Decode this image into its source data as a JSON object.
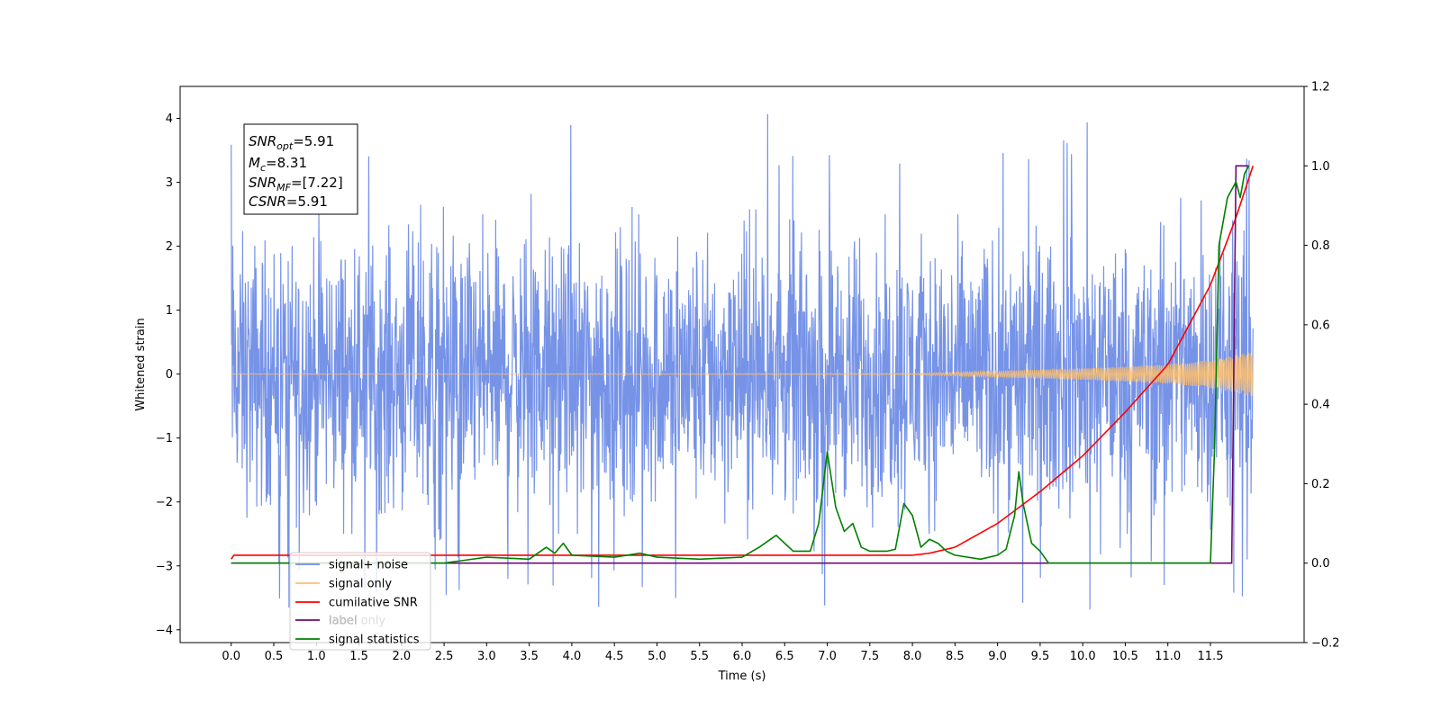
{
  "chart_data": {
    "type": "line",
    "xlabel": "Time (s)",
    "ylabel_left": "Whitened strain",
    "ylabel_right": "",
    "xlim": [
      -0.6,
      12.6
    ],
    "ylim_left": [
      -4.2,
      4.5
    ],
    "ylim_right": [
      -0.2,
      1.2
    ],
    "x_ticks": [
      "0.0",
      "0.5",
      "1.0",
      "1.5",
      "2.0",
      "2.5",
      "3.0",
      "3.5",
      "4.0",
      "4.5",
      "5.0",
      "5.5",
      "6.0",
      "6.5",
      "7.0",
      "7.5",
      "8.0",
      "8.5",
      "9.0",
      "9.5",
      "10.0",
      "10.5",
      "11.0",
      "11.5"
    ],
    "y_ticks_left": [
      "4",
      "3",
      "2",
      "1",
      "0",
      "−1",
      "−2",
      "−3",
      "−4"
    ],
    "y_ticks_right": [
      "1.2",
      "1.0",
      "0.8",
      "0.6",
      "0.4",
      "0.2",
      "0.0",
      "−0.2"
    ],
    "grid": false,
    "legend_position": "bottom-left",
    "annotation": {
      "lines": [
        {
          "base": "SNR",
          "sub": "opt",
          "rest": "=5.91"
        },
        {
          "base": "M",
          "sub": "c",
          "rest": "=8.31"
        },
        {
          "base": "SNR",
          "sub": "MF",
          "rest": "=[7.22]"
        },
        {
          "base": "CSNR",
          "sub": "",
          "rest": "=5.91"
        }
      ]
    },
    "series": [
      {
        "name": "signal+ noise",
        "color": "#6f8de6",
        "axis": "left",
        "x_range": [
          0.0,
          12.0
        ],
        "envelope_upper": 2.5,
        "envelope_lower": -2.5,
        "peak_max": 4.1,
        "peak_min": -3.7
      },
      {
        "name": "signal only",
        "color": "#ffbf6b",
        "axis": "left",
        "x": [
          0.0,
          8.0,
          9.0,
          10.0,
          11.0,
          11.5,
          12.0
        ],
        "amplitude": [
          0.0,
          0.01,
          0.05,
          0.09,
          0.15,
          0.22,
          0.35
        ]
      },
      {
        "name": "cumilative SNR",
        "color": "#ff0000",
        "axis": "right",
        "x": [
          0.0,
          0.02,
          8.0,
          8.2,
          8.5,
          9.0,
          9.5,
          10.0,
          10.5,
          11.0,
          11.5,
          11.8,
          12.0
        ],
        "y": [
          0.01,
          0.02,
          0.02,
          0.025,
          0.04,
          0.1,
          0.18,
          0.27,
          0.38,
          0.5,
          0.7,
          0.87,
          1.0
        ]
      },
      {
        "name": "label",
        "color": "#6a0d6e",
        "axis": "right",
        "x": [
          0.0,
          11.75,
          11.8,
          11.95
        ],
        "y": [
          0.0,
          0.0,
          1.0,
          1.0
        ]
      },
      {
        "name": "label only",
        "color": "#d3d3d3",
        "axis": "right",
        "x": [],
        "y": []
      },
      {
        "name": "signal statistics",
        "color": "#008000",
        "axis": "right",
        "x": [
          0.0,
          2.5,
          3.0,
          3.5,
          3.7,
          3.8,
          3.9,
          4.0,
          4.5,
          4.8,
          5.0,
          5.5,
          6.0,
          6.2,
          6.4,
          6.5,
          6.6,
          6.8,
          6.9,
          7.0,
          7.1,
          7.2,
          7.3,
          7.4,
          7.5,
          7.7,
          7.8,
          7.9,
          8.0,
          8.1,
          8.2,
          8.3,
          8.4,
          8.5,
          8.8,
          9.0,
          9.1,
          9.2,
          9.25,
          9.3,
          9.4,
          9.5,
          9.6,
          9.8,
          10.0,
          11.0,
          11.4,
          11.5,
          11.55,
          11.6,
          11.7,
          11.8,
          11.85,
          11.9,
          11.95
        ],
        "y": [
          0.0,
          0.0,
          0.015,
          0.01,
          0.04,
          0.025,
          0.05,
          0.02,
          0.015,
          0.025,
          0.015,
          0.01,
          0.015,
          0.04,
          0.07,
          0.05,
          0.03,
          0.03,
          0.1,
          0.28,
          0.14,
          0.08,
          0.1,
          0.04,
          0.03,
          0.03,
          0.035,
          0.15,
          0.12,
          0.04,
          0.06,
          0.05,
          0.03,
          0.02,
          0.01,
          0.02,
          0.035,
          0.12,
          0.23,
          0.15,
          0.05,
          0.03,
          0.0,
          0.0,
          0.0,
          0.0,
          0.0,
          0.0,
          0.3,
          0.8,
          0.92,
          0.96,
          0.92,
          0.98,
          1.0
        ]
      }
    ]
  }
}
